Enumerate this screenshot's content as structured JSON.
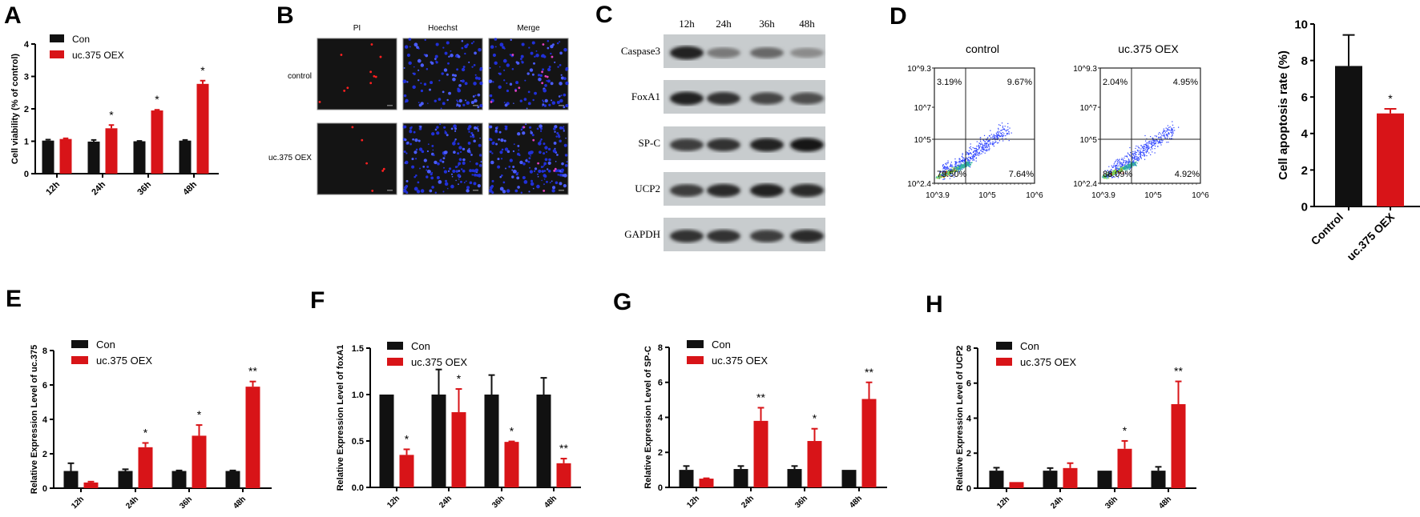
{
  "colors": {
    "con": "#111111",
    "oex": "#d81418",
    "axis": "#000000"
  },
  "panels": {
    "A": {
      "letter": "A",
      "chart_data": {
        "type": "bar",
        "ylabel": "Cell viability (% of control)",
        "categories": [
          "12h",
          "24h",
          "36h",
          "48h"
        ],
        "ylim": [
          0,
          4
        ],
        "yticks": [
          0,
          1,
          2,
          3,
          4
        ],
        "legend": "top-left",
        "series": [
          {
            "name": "Con",
            "values": [
              1.02,
              0.99,
              1.0,
              1.02
            ],
            "errors": [
              0.03,
              0.05,
              0.01,
              0.02
            ]
          },
          {
            "name": "uc.375 OEX",
            "values": [
              1.07,
              1.4,
              1.95,
              2.77
            ],
            "errors": [
              0.02,
              0.1,
              0.02,
              0.1
            ]
          }
        ],
        "significance": [
          "",
          "*",
          "*",
          "*"
        ]
      }
    },
    "B": {
      "letter": "B",
      "columns": [
        "PI",
        "Hoechst",
        "Merge"
      ],
      "rows": [
        "control",
        "uc.375 OEX"
      ]
    },
    "C": {
      "letter": "C",
      "lanes": [
        "12h",
        "24h",
        "36h",
        "48h"
      ],
      "proteins": [
        {
          "name": "Caspase3",
          "band_intensity": [
            0.95,
            0.45,
            0.55,
            0.35
          ]
        },
        {
          "name": "FoxA1",
          "band_intensity": [
            0.95,
            0.85,
            0.75,
            0.7
          ]
        },
        {
          "name": "SP-C",
          "band_intensity": [
            0.8,
            0.85,
            0.95,
            1.0
          ]
        },
        {
          "name": "UCP2",
          "band_intensity": [
            0.8,
            0.9,
            0.95,
            0.9
          ]
        },
        {
          "name": "GAPDH",
          "band_intensity": [
            0.85,
            0.85,
            0.8,
            0.9
          ]
        }
      ]
    },
    "D": {
      "letter": "D",
      "flow": [
        {
          "title": "control",
          "quadrants": {
            "ul": "3.19%",
            "ur": "9.67%",
            "ll": "79.50%",
            "lr": "7.64%"
          }
        },
        {
          "title": "uc.375 OEX",
          "quadrants": {
            "ul": "2.04%",
            "ur": "4.95%",
            "ll": "88.09%",
            "lr": "4.92%"
          }
        }
      ],
      "flow_yticks": [
        "10^9.3",
        "10^7",
        "10^5",
        "10^2.4"
      ],
      "flow_xticks": [
        "10^3.9",
        "10^5",
        "10^6"
      ],
      "chart_data": {
        "type": "bar",
        "ylabel": "Cell apoptosis rate (%)",
        "categories": [
          "Control",
          "uc.375 OEX"
        ],
        "ylim": [
          0,
          10
        ],
        "yticks": [
          0,
          2,
          4,
          6,
          8,
          10
        ],
        "values": [
          7.7,
          5.1
        ],
        "errors": [
          1.7,
          0.25
        ],
        "significance": [
          "",
          "*"
        ]
      }
    },
    "E": {
      "letter": "E",
      "chart_data": {
        "type": "bar",
        "ylabel": "Relative Expression Level of uc.375",
        "categories": [
          "12h",
          "24h",
          "36h",
          "48h"
        ],
        "ylim": [
          0,
          8
        ],
        "yticks": [
          0,
          2,
          4,
          6,
          8
        ],
        "legend": "top-left",
        "series": [
          {
            "name": "Con",
            "values": [
              1.0,
              1.0,
              1.0,
              1.0
            ],
            "errors": [
              0.45,
              0.1,
              0.03,
              0.03
            ]
          },
          {
            "name": "uc.375 OEX",
            "values": [
              0.33,
              2.38,
              3.05,
              5.9
            ],
            "errors": [
              0.05,
              0.25,
              0.62,
              0.3
            ]
          }
        ],
        "significance": [
          "",
          "*",
          "*",
          "**"
        ]
      }
    },
    "F": {
      "letter": "F",
      "chart_data": {
        "type": "bar",
        "ylabel": "Relative Expression Level of foxA1",
        "categories": [
          "12h",
          "24h",
          "36h",
          "48h"
        ],
        "ylim": [
          0,
          1.5
        ],
        "yticks": [
          "0.0",
          "0.5",
          "1.0",
          "1.5"
        ],
        "legend": "top-left",
        "series": [
          {
            "name": "Con",
            "values": [
              1.0,
              1.0,
              1.0,
              1.0
            ],
            "errors": [
              0.0,
              0.27,
              0.21,
              0.18
            ]
          },
          {
            "name": "uc.375 OEX",
            "values": [
              0.35,
              0.81,
              0.49,
              0.26
            ],
            "errors": [
              0.06,
              0.25,
              0.005,
              0.05
            ]
          }
        ],
        "significance": [
          "*",
          "*",
          "*",
          "**"
        ]
      }
    },
    "G": {
      "letter": "G",
      "chart_data": {
        "type": "bar",
        "ylabel": "Relative Expression Level of SP-C",
        "categories": [
          "12h",
          "24h",
          "36h",
          "48h"
        ],
        "ylim": [
          0,
          8
        ],
        "yticks": [
          0,
          2,
          4,
          6,
          8
        ],
        "legend": "top-left",
        "series": [
          {
            "name": "Con",
            "values": [
              1.0,
              1.05,
              1.05,
              1.0
            ],
            "errors": [
              0.22,
              0.17,
              0.17,
              0.0
            ]
          },
          {
            "name": "uc.375 OEX",
            "values": [
              0.5,
              3.8,
              2.65,
              5.05
            ],
            "errors": [
              0.02,
              0.75,
              0.7,
              0.95
            ]
          }
        ],
        "significance": [
          "",
          "**",
          "*",
          "**"
        ]
      }
    },
    "H": {
      "letter": "H",
      "chart_data": {
        "type": "bar",
        "ylabel": "Relative Expression Level of UCP2",
        "categories": [
          "12h",
          "24h",
          "36h",
          "48h"
        ],
        "ylim": [
          0,
          8
        ],
        "yticks": [
          0,
          2,
          4,
          6,
          8
        ],
        "legend": "top-left",
        "series": [
          {
            "name": "Con",
            "values": [
              1.0,
              1.0,
              1.0,
              1.0
            ],
            "errors": [
              0.17,
              0.15,
              0.0,
              0.22
            ]
          },
          {
            "name": "uc.375 OEX",
            "values": [
              0.35,
              1.15,
              2.25,
              4.8
            ],
            "errors": [
              0.0,
              0.28,
              0.45,
              1.3
            ]
          }
        ],
        "significance": [
          "",
          "",
          "*",
          "**"
        ]
      }
    }
  }
}
